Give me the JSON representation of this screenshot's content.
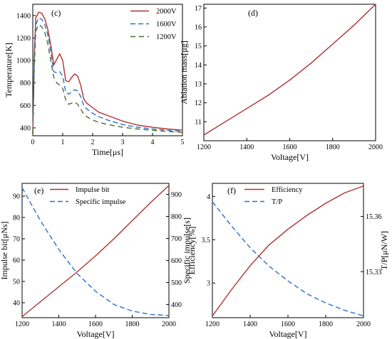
{
  "colors": {
    "red": "#b03030",
    "blue": "#2e6fc9",
    "green": "#4f6b2f"
  },
  "chart_data": [
    {
      "id": "c",
      "type": "line",
      "panel_label": "(c)",
      "xlabel": "Time[μs]",
      "ylabel": "Temperature[K]",
      "xlim": [
        0,
        5
      ],
      "ylim": [
        330,
        1500
      ],
      "xticks": [
        0,
        1,
        2,
        3,
        4,
        5
      ],
      "yticks": [
        400,
        600,
        800,
        1000,
        1200,
        1400
      ],
      "legend_position": "top-right",
      "series": [
        {
          "name": "2000V",
          "color": "#b03030",
          "dash": "",
          "x": [
            0,
            0.05,
            0.1,
            0.2,
            0.3,
            0.4,
            0.5,
            0.6,
            0.7,
            0.8,
            0.9,
            1.0,
            1.1,
            1.2,
            1.3,
            1.4,
            1.5,
            1.6,
            1.7,
            1.8,
            2.0,
            2.2,
            2.5,
            3.0,
            3.5,
            4.0,
            4.5,
            5.0
          ],
          "y": [
            350,
            1050,
            1380,
            1430,
            1420,
            1370,
            1280,
            1140,
            960,
            1010,
            1060,
            1000,
            820,
            810,
            850,
            880,
            860,
            780,
            660,
            620,
            580,
            540,
            510,
            460,
            425,
            405,
            390,
            380
          ]
        },
        {
          "name": "1600V",
          "color": "#2e6fc9",
          "dash": "7,4",
          "x": [
            0,
            0.05,
            0.1,
            0.2,
            0.3,
            0.4,
            0.5,
            0.6,
            0.7,
            0.8,
            0.9,
            1.0,
            1.1,
            1.2,
            1.3,
            1.4,
            1.5,
            1.6,
            1.7,
            1.8,
            2.0,
            2.2,
            2.5,
            3.0,
            3.5,
            4.0,
            4.5,
            5.0
          ],
          "y": [
            350,
            1000,
            1320,
            1380,
            1365,
            1320,
            1230,
            1080,
            900,
            890,
            900,
            860,
            720,
            700,
            720,
            740,
            730,
            680,
            600,
            570,
            530,
            500,
            470,
            430,
            405,
            390,
            378,
            370
          ]
        },
        {
          "name": "1200V",
          "color": "#4f6b2f",
          "dash": "7,5",
          "x": [
            0,
            0.05,
            0.1,
            0.2,
            0.3,
            0.4,
            0.5,
            0.6,
            0.7,
            0.8,
            0.9,
            1.0,
            1.1,
            1.2,
            1.3,
            1.4,
            1.5,
            1.6,
            1.7,
            1.8,
            2.0,
            2.2,
            2.5,
            3.0,
            3.5,
            4.0,
            4.5,
            5.0
          ],
          "y": [
            350,
            950,
            1260,
            1320,
            1300,
            1250,
            1150,
            1000,
            850,
            800,
            780,
            750,
            650,
            610,
            620,
            630,
            610,
            570,
            520,
            500,
            470,
            450,
            430,
            405,
            390,
            378,
            368,
            360
          ]
        }
      ]
    },
    {
      "id": "d",
      "type": "line",
      "panel_label": "(d)",
      "xlabel": "Voltage[V]",
      "ylabel": "Ablation mass[μg]",
      "xlim": [
        1200,
        2000
      ],
      "ylim": [
        10,
        17.2
      ],
      "xticks": [
        1200,
        1400,
        1600,
        1800,
        2000
      ],
      "yticks": [
        11,
        12,
        13,
        14,
        15,
        16,
        17
      ],
      "series": [
        {
          "name": "",
          "color": "#b03030",
          "dash": "",
          "x": [
            1200,
            1300,
            1400,
            1500,
            1600,
            1700,
            1800,
            1900,
            2000
          ],
          "y": [
            10.3,
            11.0,
            11.7,
            12.4,
            13.2,
            14.1,
            15.1,
            16.1,
            17.2
          ]
        }
      ]
    },
    {
      "id": "e",
      "type": "line",
      "panel_label": "(e)",
      "xlabel": "Voltage[V]",
      "ylabel": "Impulse bit[μNs]",
      "ylabel_right": "Specific impulse[s]",
      "xlim": [
        1200,
        2000
      ],
      "ylim": [
        33,
        96
      ],
      "ylim_right": [
        340,
        950
      ],
      "xticks": [
        1200,
        1400,
        1600,
        1800,
        2000
      ],
      "yticks": [
        40,
        50,
        60,
        70,
        80,
        90
      ],
      "yticks_right": [
        400,
        500,
        600,
        700,
        800,
        900
      ],
      "legend_position": "top-center",
      "series": [
        {
          "name": "Impulse bit",
          "axis": "left",
          "color": "#b03030",
          "dash": "",
          "x": [
            1200,
            1300,
            1400,
            1500,
            1600,
            1700,
            1800,
            1900,
            2000
          ],
          "y": [
            33.5,
            40.5,
            47.5,
            54.5,
            62,
            70,
            78.5,
            87,
            95
          ]
        },
        {
          "name": "Specific impulse",
          "axis": "right",
          "color": "#2e6fc9",
          "dash": "7,4",
          "x": [
            1200,
            1300,
            1400,
            1500,
            1600,
            1700,
            1800,
            1900,
            2000
          ],
          "y": [
            930,
            780,
            650,
            540,
            460,
            400,
            370,
            355,
            350
          ]
        }
      ]
    },
    {
      "id": "f",
      "type": "line",
      "panel_label": "(f)",
      "xlabel": "Voltage[V]",
      "ylabel": "Efficiency[%]",
      "ylabel_right": "T/P[μN/W]",
      "xlim": [
        1200,
        2000
      ],
      "ylim": [
        2.6,
        4.15
      ],
      "ylim_right": [
        15.305,
        15.378
      ],
      "xticks": [
        1200,
        1400,
        1600,
        1800,
        2000
      ],
      "yticks": [
        3,
        3.5,
        4
      ],
      "yticks_right": [
        15.33,
        15.36
      ],
      "legend_position": "top-center",
      "series": [
        {
          "name": "Efficiency",
          "axis": "left",
          "color": "#b03030",
          "dash": "",
          "x": [
            1200,
            1300,
            1400,
            1500,
            1600,
            1700,
            1800,
            1900,
            2000
          ],
          "y": [
            2.62,
            2.92,
            3.2,
            3.44,
            3.62,
            3.78,
            3.92,
            4.04,
            4.12
          ]
        },
        {
          "name": "T/P",
          "axis": "right",
          "color": "#2e6fc9",
          "dash": "7,4",
          "x": [
            1200,
            1300,
            1400,
            1500,
            1600,
            1700,
            1800,
            1900,
            2000
          ],
          "y": [
            15.368,
            15.355,
            15.343,
            15.333,
            15.325,
            15.318,
            15.313,
            15.309,
            15.306
          ]
        }
      ]
    }
  ]
}
